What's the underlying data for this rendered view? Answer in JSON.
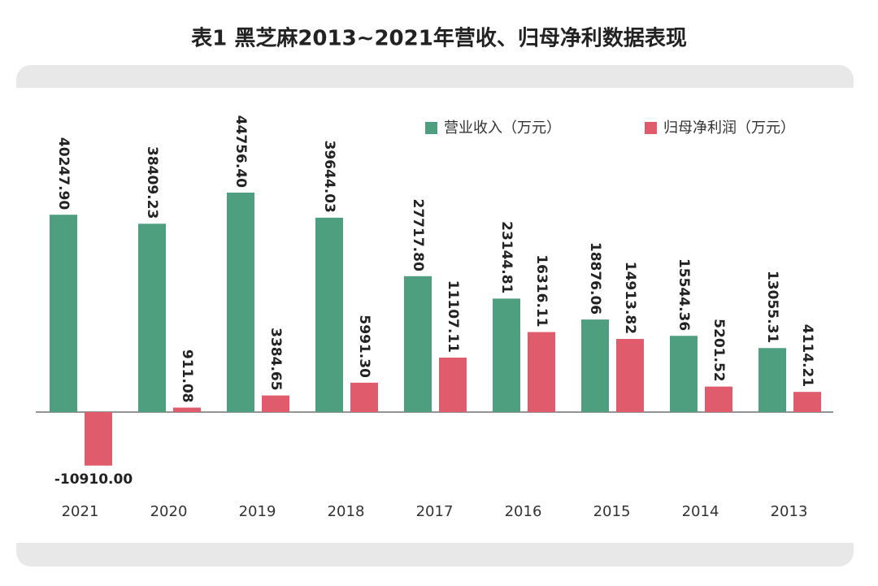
{
  "chart_data": {
    "type": "bar",
    "title": "表1  黑芝麻2013~2021年营收、归母净利数据表现",
    "categories": [
      "2021",
      "2020",
      "2019",
      "2018",
      "2017",
      "2016",
      "2015",
      "2014",
      "2013"
    ],
    "series": [
      {
        "name": "营业收入（万元）",
        "color": "#4e9e80",
        "values": [
          40247.9,
          38409.23,
          44756.4,
          39644.03,
          27717.8,
          23144.81,
          18876.06,
          15544.36,
          13055.31
        ],
        "value_labels": [
          "40247.90",
          "38409.23",
          "44756.40",
          "39644.03",
          "27717.80",
          "23144.81",
          "18876.06",
          "15544.36",
          "13055.31"
        ]
      },
      {
        "name": "归母净利润（万元）",
        "color": "#e05b6b",
        "values": [
          -10910,
          911.08,
          3384.65,
          5991.3,
          11107.11,
          16316.11,
          14913.82,
          5201.52,
          4114.21
        ],
        "value_labels": [
          "-10910.00",
          "911.08",
          "3384.65",
          "5991.30",
          "11107.11",
          "16316.11",
          "14913.82",
          "5201.52",
          "4114.21"
        ]
      }
    ]
  }
}
